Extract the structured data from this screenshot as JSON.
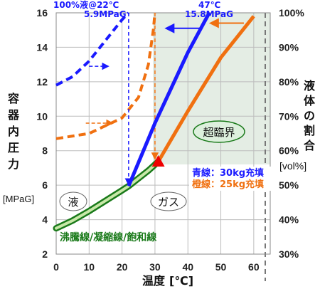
{
  "chart_data": {
    "type": "line",
    "xlabel": "温度",
    "xunit": "[℃]",
    "ylabel": [
      "容",
      "器",
      "内",
      "圧",
      "力"
    ],
    "yunit": "[MPaG]",
    "y2label": [
      "液",
      "体",
      "の",
      "割",
      "合"
    ],
    "y2unit": "[vol%]",
    "xlim": [
      0,
      65
    ],
    "ylim": [
      2,
      16
    ],
    "y2lim": [
      30,
      100
    ],
    "xticks": [
      0,
      10,
      20,
      30,
      40,
      50,
      60
    ],
    "yticks": [
      2,
      4,
      6,
      8,
      10,
      12,
      14,
      16
    ],
    "y2ticks": [
      "30%",
      "40%",
      "50%",
      "60%",
      "70%",
      "80%",
      "90%",
      "100%"
    ],
    "saturation_curve": {
      "label": "沸騰線/凝縮線/飽和線",
      "color": "#1a7a1a",
      "x": [
        0,
        5,
        10,
        15,
        20,
        22,
        25,
        28,
        31
      ],
      "y": [
        3.5,
        3.95,
        4.5,
        5.1,
        5.7,
        5.95,
        6.4,
        6.85,
        7.37
      ]
    },
    "series": [
      {
        "name": "青線：30kg充填",
        "color": "#1a1aff",
        "liquid_fraction": {
          "x": [
            0,
            5,
            10,
            15,
            20,
            22
          ],
          "y": [
            11.8,
            12.3,
            13.2,
            14.4,
            15.6,
            16
          ]
        },
        "pressure": {
          "x": [
            22,
            30,
            40,
            46.5
          ],
          "y": [
            5.95,
            9.6,
            13.7,
            16
          ]
        }
      },
      {
        "name": "橙線：25kg充填",
        "color": "#f07010",
        "liquid_fraction": {
          "x": [
            0,
            10,
            20,
            25,
            28,
            29.5,
            30
          ],
          "y": [
            8.7,
            9.0,
            9.9,
            11.1,
            13.0,
            15.0,
            16
          ]
        },
        "pressure": {
          "x": [
            31,
            40,
            50,
            60
          ],
          "y": [
            7.37,
            10.3,
            13.4,
            15.8
          ]
        }
      }
    ],
    "critical_point": {
      "x": 31,
      "y": 7.37
    },
    "annotations": {
      "blue_top": [
        "100%液@22℃",
        "5.9MPaG"
      ],
      "blue_pt": [
        "47℃",
        "15.8MPaG"
      ],
      "supercritical": "超臨界",
      "liquid": "液",
      "gas": "ガス"
    }
  }
}
